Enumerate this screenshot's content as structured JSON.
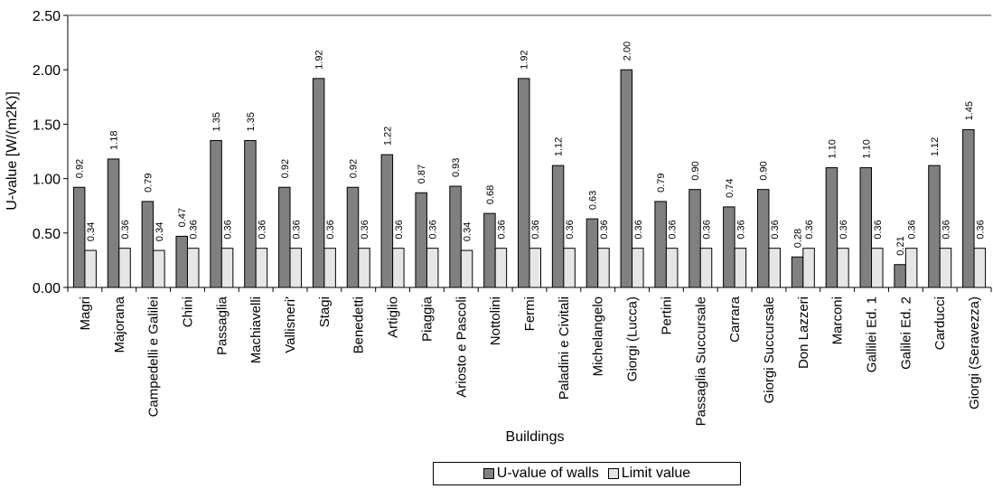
{
  "chart_data": {
    "type": "bar",
    "title": "",
    "xlabel": "Buildings",
    "ylabel": "U-value [W/(m2K)]",
    "ylim": [
      0,
      2.5
    ],
    "yticks": [
      "0.00",
      "0.50",
      "1.00",
      "1.50",
      "2.00",
      "2.50"
    ],
    "grid": false,
    "legend_position": "bottom",
    "categories": [
      "Magri",
      "Majorana",
      "Campedelli e Galilei",
      "Chini",
      "Passaglia",
      "Machiavelli",
      "Vallisneri'",
      "Stagi",
      "Benedetti",
      "Artiglio",
      "Piaggia",
      "Ariosto e Pascoli",
      "Nottolini",
      "Fermi",
      "Paladini e Civitali",
      "Michelangelo",
      "Giorgi (Lucca)",
      "Pertini",
      "Passaglia Succursale",
      "Carrara",
      "Giorgi Succursale",
      "Don Lazzeri",
      "Marconi",
      "Gallilei Ed. 1",
      "Galilei Ed. 2",
      "Carducci",
      "Giorgi (Seravezza)"
    ],
    "series": [
      {
        "name": "U-value of walls",
        "color": "#808080",
        "values": [
          0.92,
          1.18,
          0.79,
          0.47,
          1.35,
          1.35,
          0.92,
          1.92,
          0.92,
          1.22,
          0.87,
          0.93,
          0.68,
          1.92,
          1.12,
          0.63,
          2.0,
          0.79,
          0.9,
          0.74,
          0.9,
          0.28,
          1.1,
          1.1,
          0.21,
          1.12,
          1.45
        ]
      },
      {
        "name": "Limit value",
        "color": "#e6e6e6",
        "values": [
          0.34,
          0.36,
          0.34,
          0.36,
          0.36,
          0.36,
          0.36,
          0.36,
          0.36,
          0.36,
          0.36,
          0.34,
          0.36,
          0.36,
          0.36,
          0.36,
          0.36,
          0.36,
          0.36,
          0.36,
          0.36,
          0.36,
          0.36,
          0.36,
          0.36,
          0.36,
          0.36
        ]
      }
    ]
  }
}
